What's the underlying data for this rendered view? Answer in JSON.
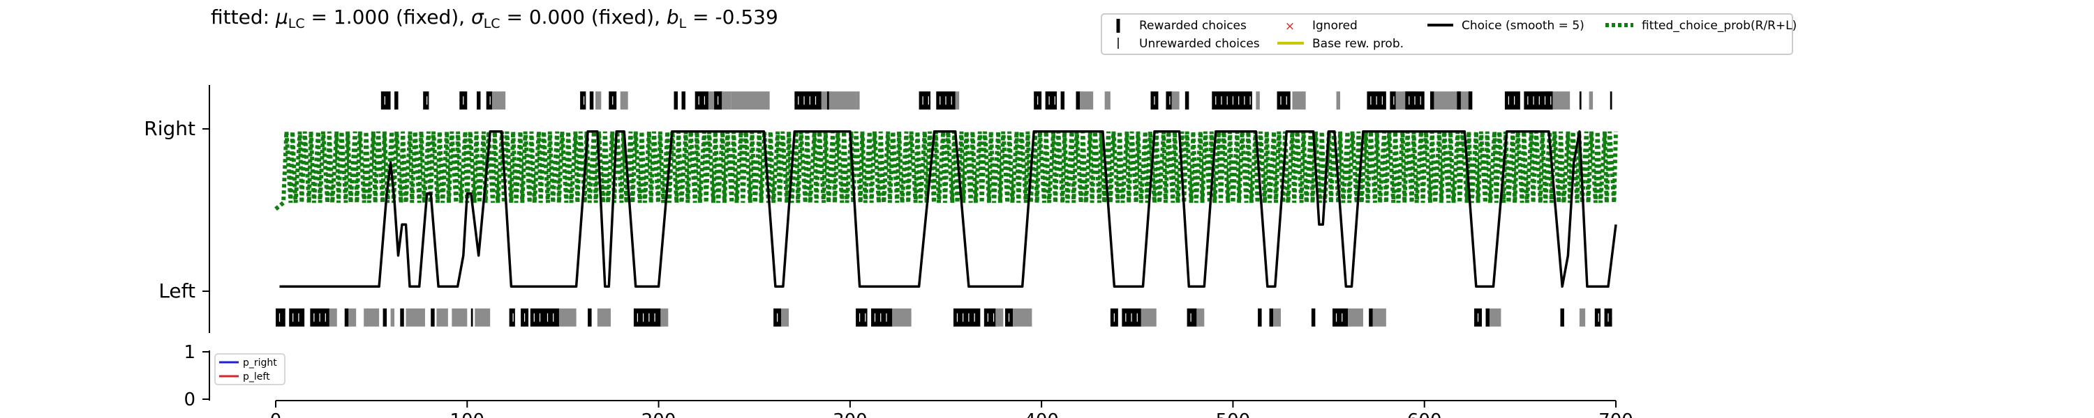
{
  "chart_data": [
    {
      "type": "line",
      "title_parts": {
        "prefix": "fitted: ",
        "mu_sym": "μ",
        "mu_sub": "LC",
        "mu_val": " = 1.000 (fixed), ",
        "sigma_sym": "σ",
        "sigma_sub": "LC",
        "sigma_val": " = 0.000 (fixed), ",
        "b_sym": "b",
        "b_sub": "L",
        "b_val": " = -0.539"
      },
      "xlim": [
        0,
        700
      ],
      "x_ticks": [
        0,
        100,
        200,
        300,
        400,
        500,
        600,
        700
      ],
      "x_tick_labels": [
        "0",
        "100",
        "200",
        "300",
        "400",
        "500",
        "600",
        "700"
      ],
      "ylim": [
        -0.3,
        1.3
      ],
      "y_ticks": [
        0,
        1
      ],
      "y_tick_labels": [
        "Left",
        "Right"
      ],
      "legend": {
        "placement": "top-right",
        "entries": [
          {
            "label": "Rewarded choices",
            "marker": "thick-tick",
            "color": "#000000"
          },
          {
            "label": "Unrewarded choices",
            "marker": "thin-tick",
            "color": "#000000"
          },
          {
            "label": "Ignored",
            "marker": "x",
            "color": "#d62728"
          },
          {
            "label": "Base rew. prob.",
            "marker": "line",
            "color": "#c8c800"
          },
          {
            "label": "Choice (smooth = 5)",
            "marker": "line",
            "color": "#000000"
          },
          {
            "label": "fitted_choice_prob(R/R+L)",
            "marker": "dotted",
            "color": "#107f10"
          }
        ]
      },
      "choice_smooth_series": {
        "name": "Choice (smooth = 5)",
        "color": "#000000",
        "points": [
          [
            2,
            0
          ],
          [
            54,
            0
          ],
          [
            58,
            0.6
          ],
          [
            60,
            0.8
          ],
          [
            62,
            0.55
          ],
          [
            64,
            0.2
          ],
          [
            66,
            0.4
          ],
          [
            68,
            0.4
          ],
          [
            70,
            0
          ],
          [
            75,
            0
          ],
          [
            79,
            0.6
          ],
          [
            81,
            0.6
          ],
          [
            85,
            0
          ],
          [
            95,
            0
          ],
          [
            98,
            0.2
          ],
          [
            100,
            0.6
          ],
          [
            102,
            0.6
          ],
          [
            104,
            0.4
          ],
          [
            106,
            0.2
          ],
          [
            109,
            0.6
          ],
          [
            112,
            1
          ],
          [
            118,
            1
          ],
          [
            123,
            0
          ],
          [
            157,
            0
          ],
          [
            163,
            1
          ],
          [
            168,
            1
          ],
          [
            172,
            0
          ],
          [
            174,
            0
          ],
          [
            178,
            1
          ],
          [
            182,
            1
          ],
          [
            188,
            0
          ],
          [
            200,
            0
          ],
          [
            207,
            1
          ],
          [
            255,
            1
          ],
          [
            261,
            0
          ],
          [
            265,
            0
          ],
          [
            271,
            1
          ],
          [
            300,
            1
          ],
          [
            305,
            0
          ],
          [
            336,
            0
          ],
          [
            344,
            1
          ],
          [
            355,
            1
          ],
          [
            362,
            0
          ],
          [
            390,
            0
          ],
          [
            396,
            1
          ],
          [
            432,
            1
          ],
          [
            438,
            0
          ],
          [
            453,
            0
          ],
          [
            459,
            1
          ],
          [
            472,
            1
          ],
          [
            477,
            0
          ],
          [
            485,
            0
          ],
          [
            491,
            1
          ],
          [
            512,
            1
          ],
          [
            518,
            0
          ],
          [
            522,
            0
          ],
          [
            528,
            1
          ],
          [
            542,
            1
          ],
          [
            545,
            0.4
          ],
          [
            547,
            0.4
          ],
          [
            550,
            1
          ],
          [
            553,
            1
          ],
          [
            559,
            0
          ],
          [
            562,
            0
          ],
          [
            568,
            1
          ],
          [
            621,
            1
          ],
          [
            627,
            0
          ],
          [
            636,
            0
          ],
          [
            643,
            1
          ],
          [
            665,
            1
          ],
          [
            672,
            0
          ],
          [
            675,
            0.2
          ],
          [
            678,
            0.8
          ],
          [
            681,
            1
          ],
          [
            685,
            0
          ],
          [
            696,
            0
          ],
          [
            700,
            0.4
          ]
        ]
      },
      "fitted_choice_prob_series": {
        "name": "fitted_choice_prob(R/R+L)",
        "color": "#107f10",
        "high_value": 1.0,
        "low_value": 0.54,
        "start_value": 0.5,
        "pattern_note": "oscillates between high and low roughly every 1-3 trials"
      },
      "choice_rasters": {
        "right_row_y": 1.2,
        "left_row_y": -0.2,
        "right_rewarded_ranges": [
          [
            55,
            60
          ],
          [
            62,
            64
          ],
          [
            77,
            80
          ],
          [
            96,
            100
          ],
          [
            105,
            107
          ],
          [
            110,
            113
          ],
          [
            159,
            162
          ],
          [
            164,
            166
          ],
          [
            174,
            178
          ],
          [
            208,
            210
          ],
          [
            212,
            214
          ],
          [
            219,
            226
          ],
          [
            229,
            233
          ],
          [
            271,
            285
          ],
          [
            288,
            289
          ],
          [
            336,
            342
          ],
          [
            345,
            355
          ],
          [
            396,
            400
          ],
          [
            402,
            408
          ],
          [
            410,
            412
          ],
          [
            418,
            420
          ],
          [
            457,
            461
          ],
          [
            465,
            468
          ],
          [
            475,
            477
          ],
          [
            489,
            510
          ],
          [
            523,
            530
          ],
          [
            570,
            580
          ],
          [
            582,
            585
          ],
          [
            590,
            600
          ],
          [
            603,
            605
          ],
          [
            617,
            619
          ],
          [
            623,
            625
          ],
          [
            642,
            650
          ],
          [
            652,
            667
          ],
          [
            681,
            682
          ],
          [
            697,
            698
          ]
        ],
        "right_unrewarded_ranges": [
          [
            113,
            120
          ],
          [
            167,
            170
          ],
          [
            180,
            184
          ],
          [
            226,
            238
          ],
          [
            238,
            258
          ],
          [
            285,
            303
          ],
          [
            303,
            305
          ],
          [
            355,
            357
          ],
          [
            420,
            427
          ],
          [
            433,
            436
          ],
          [
            468,
            472
          ],
          [
            512,
            514
          ],
          [
            531,
            538
          ],
          [
            554,
            556
          ],
          [
            585,
            595
          ],
          [
            605,
            625
          ],
          [
            663,
            676
          ],
          [
            686,
            688
          ]
        ],
        "left_rewarded_ranges": [
          [
            0,
            5
          ],
          [
            7,
            15
          ],
          [
            18,
            28
          ],
          [
            36,
            38
          ],
          [
            56,
            58
          ],
          [
            65,
            67
          ],
          [
            81,
            83
          ],
          [
            102,
            103
          ],
          [
            122,
            125
          ],
          [
            128,
            132
          ],
          [
            133,
            140
          ],
          [
            140,
            148
          ],
          [
            163,
            165
          ],
          [
            187,
            201
          ],
          [
            260,
            264
          ],
          [
            303,
            309
          ],
          [
            311,
            322
          ],
          [
            354,
            368
          ],
          [
            370,
            376
          ],
          [
            381,
            385
          ],
          [
            436,
            440
          ],
          [
            442,
            452
          ],
          [
            476,
            481
          ],
          [
            513,
            515
          ],
          [
            519,
            521
          ],
          [
            541,
            543
          ],
          [
            552,
            560
          ],
          [
            571,
            573
          ],
          [
            626,
            630
          ],
          [
            632,
            634
          ],
          [
            671,
            673
          ],
          [
            689,
            692
          ],
          [
            694,
            698
          ]
        ],
        "left_unrewarded_ranges": [
          [
            28,
            32
          ],
          [
            38,
            42
          ],
          [
            46,
            54
          ],
          [
            60,
            62
          ],
          [
            68,
            78
          ],
          [
            84,
            90
          ],
          [
            92,
            100
          ],
          [
            104,
            112
          ],
          [
            148,
            157
          ],
          [
            168,
            175
          ],
          [
            201,
            205
          ],
          [
            264,
            268
          ],
          [
            322,
            332
          ],
          [
            376,
            380
          ],
          [
            385,
            395
          ],
          [
            452,
            460
          ],
          [
            481,
            485
          ],
          [
            521,
            525
          ],
          [
            560,
            568
          ],
          [
            573,
            580
          ],
          [
            634,
            640
          ],
          [
            681,
            684
          ]
        ]
      },
      "lower_panel": {
        "ylim": [
          0,
          1
        ],
        "y_ticks": [
          0,
          1
        ],
        "y_tick_labels": [
          "0",
          "1"
        ],
        "legend": {
          "placement": "top-left",
          "entries": [
            {
              "label": "p_right",
              "color": "#1f1fd6"
            },
            {
              "label": "p_left",
              "color": "#d62728"
            }
          ]
        }
      }
    }
  ]
}
